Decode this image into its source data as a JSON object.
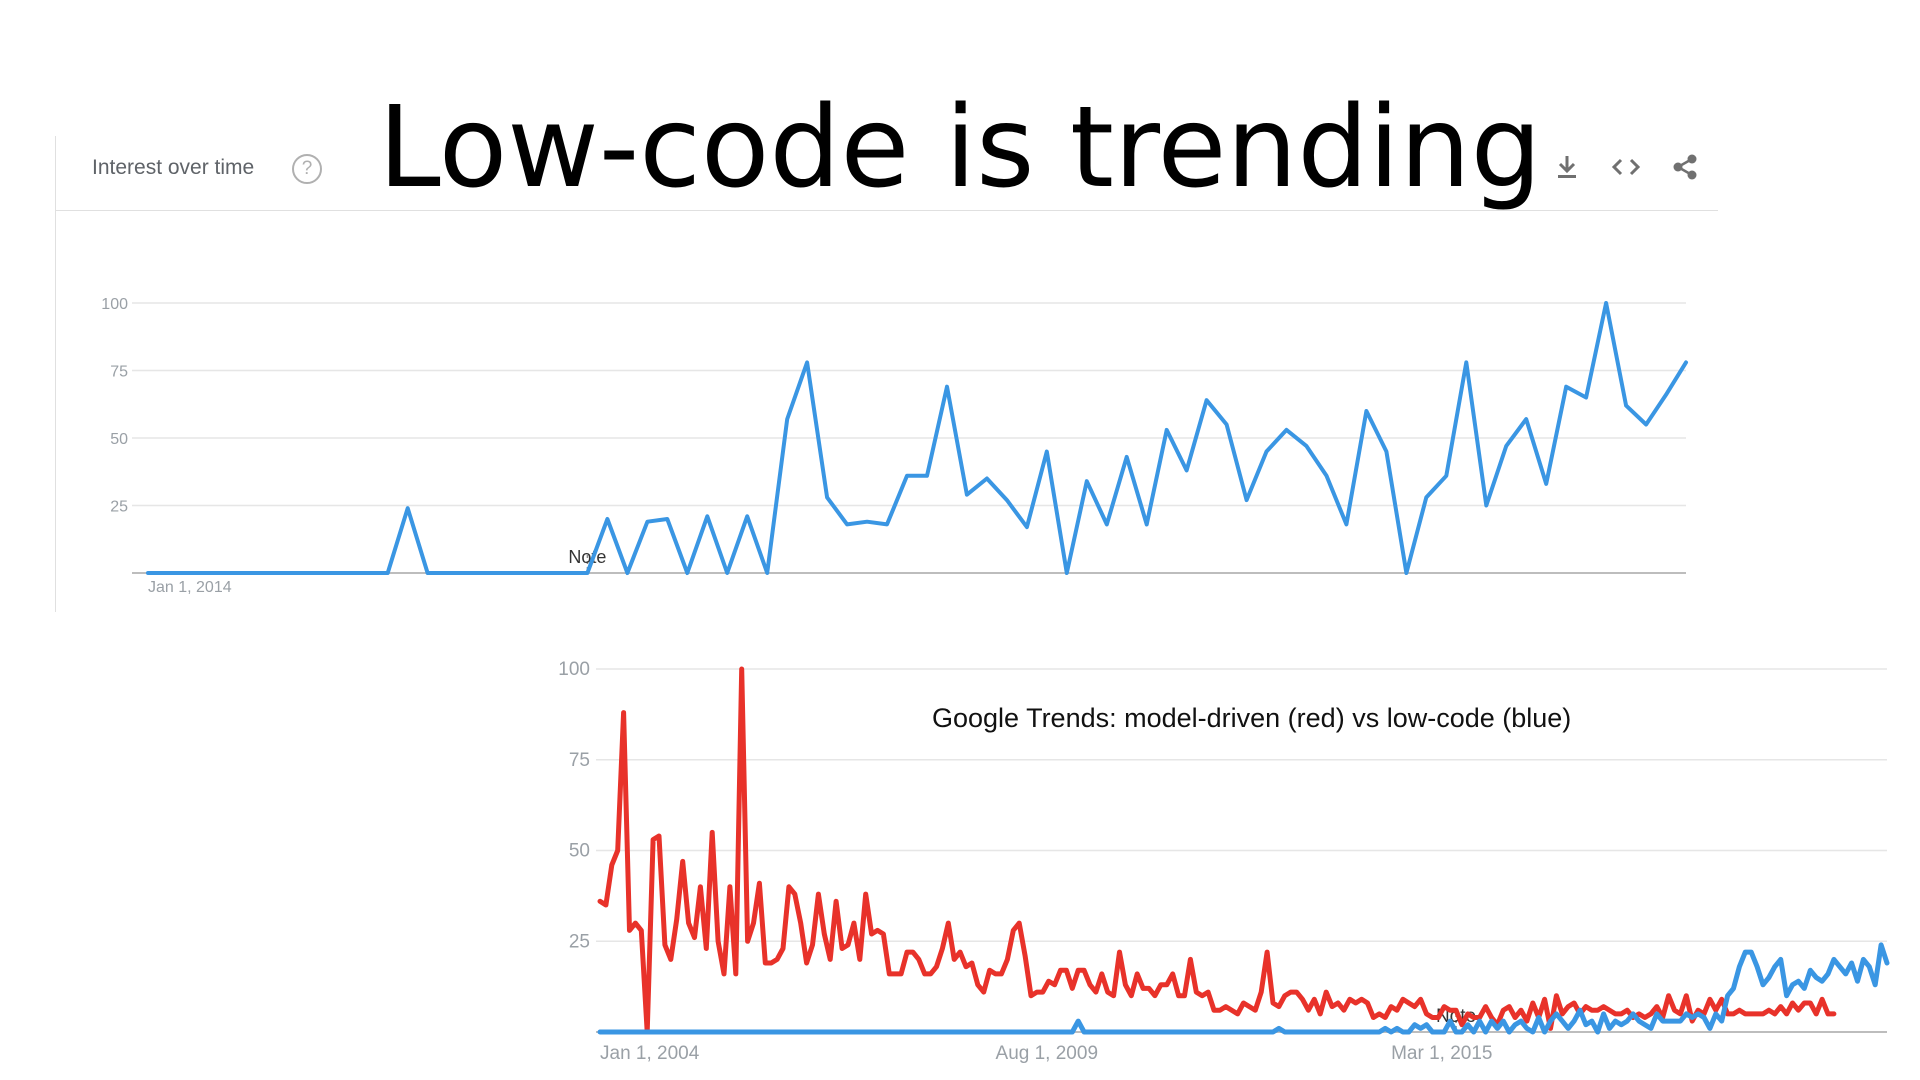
{
  "slide": {
    "title": "Low-code is trending"
  },
  "panel_top": {
    "heading": "Interest over time",
    "icons": [
      "help-icon",
      "download-icon",
      "embed-icon",
      "share-icon"
    ]
  },
  "colors": {
    "blue": "#3a96e3",
    "red": "#e8322a",
    "grid": "#e6e6e6",
    "axis": "#bdbdbd",
    "tick": "#9aa0a6"
  },
  "chart_data": [
    {
      "type": "line",
      "title": "",
      "xlabel": "",
      "ylabel": "",
      "ylim": [
        0,
        100
      ],
      "yticks": [
        25,
        50,
        75,
        100
      ],
      "x_tick_labels": [
        {
          "index": 0,
          "label": "Jan 1, 2014"
        }
      ],
      "annotation": {
        "text": "Note",
        "index": 22
      },
      "grid": true,
      "series": [
        {
          "values": [
            0,
            0,
            0,
            0,
            0,
            0,
            0,
            0,
            0,
            0,
            0,
            0,
            0,
            24,
            0,
            0,
            0,
            0,
            0,
            0,
            0,
            0,
            0,
            20,
            0,
            19,
            20,
            0,
            21,
            0,
            21,
            0,
            57,
            78,
            28,
            18,
            19,
            18,
            36,
            36,
            69,
            29,
            35,
            27,
            17,
            45,
            0,
            34,
            18,
            43,
            18,
            53,
            38,
            64,
            55,
            27,
            45,
            53,
            47,
            36,
            18,
            60,
            45,
            0,
            28,
            36,
            78,
            25,
            47,
            57,
            33,
            69,
            65,
            100,
            62,
            55,
            66,
            78
          ]
        }
      ]
    },
    {
      "type": "line",
      "title": "Google Trends: model-driven (red) vs low-code (blue)",
      "xlabel": "",
      "ylabel": "",
      "ylim": [
        0,
        100
      ],
      "yticks": [
        25,
        50,
        75,
        100
      ],
      "x_tick_labels": [
        {
          "index": 0,
          "label": "Jan 1, 2004"
        },
        {
          "index": 67,
          "label": "Aug 1, 2009"
        },
        {
          "index": 134,
          "label": "Mar 1, 2015"
        }
      ],
      "annotation": {
        "text": "Note",
        "index": 145
      },
      "grid": true,
      "series": [
        {
          "name": "model-driven",
          "color": "red",
          "values": [
            36,
            35,
            46,
            50,
            88,
            28,
            30,
            28,
            0,
            53,
            54,
            24,
            20,
            31,
            47,
            30,
            26,
            40,
            23,
            55,
            25,
            16,
            40,
            16,
            100,
            25,
            30,
            41,
            19,
            19,
            20,
            23,
            40,
            38,
            30,
            19,
            24,
            38,
            27,
            20,
            36,
            23,
            24,
            30,
            20,
            38,
            27,
            28,
            27,
            16,
            16,
            16,
            22,
            22,
            20,
            16,
            16,
            18,
            23,
            30,
            20,
            22,
            18,
            19,
            13,
            11,
            17,
            16,
            16,
            20,
            28,
            30,
            21,
            10,
            11,
            11,
            14,
            13,
            17,
            17,
            12,
            17,
            17,
            13,
            11,
            16,
            11,
            10,
            22,
            13,
            10,
            16,
            12,
            12,
            10,
            13,
            13,
            16,
            10,
            10,
            20,
            11,
            10,
            11,
            6,
            6,
            7,
            6,
            5,
            8,
            7,
            6,
            11,
            22,
            8,
            7,
            10,
            11,
            11,
            9,
            6,
            9,
            5,
            11,
            7,
            8,
            6,
            9,
            8,
            9,
            8,
            4,
            5,
            4,
            7,
            6,
            9,
            8,
            7,
            9,
            5,
            4,
            4,
            7,
            6,
            6,
            2,
            5,
            4,
            4,
            7,
            4,
            2,
            6,
            7,
            4,
            6,
            3,
            8,
            4,
            9,
            1,
            10,
            5,
            7,
            8,
            5,
            7,
            6,
            6,
            7,
            6,
            5,
            5,
            6,
            4,
            5,
            4,
            5,
            7,
            4,
            10,
            6,
            5,
            10,
            3,
            6,
            5,
            9,
            6,
            9,
            5,
            5,
            6,
            5,
            5,
            5,
            5,
            6,
            5,
            7,
            5,
            8,
            6,
            8,
            8,
            5,
            9,
            5,
            5
          ],
          "comment": "readings are approximate; red series tapers from highs near 100 in 2006 to single digits after 2015"
        },
        {
          "name": "low-code",
          "color": "blue",
          "values": [
            0,
            0,
            0,
            0,
            0,
            0,
            0,
            0,
            0,
            0,
            0,
            0,
            0,
            0,
            0,
            0,
            0,
            0,
            0,
            0,
            0,
            0,
            0,
            0,
            0,
            0,
            0,
            0,
            0,
            0,
            0,
            0,
            0,
            0,
            0,
            0,
            0,
            0,
            0,
            0,
            0,
            0,
            0,
            0,
            0,
            0,
            0,
            0,
            0,
            0,
            0,
            0,
            0,
            0,
            0,
            0,
            0,
            0,
            0,
            0,
            0,
            0,
            0,
            0,
            0,
            0,
            0,
            0,
            0,
            0,
            0,
            0,
            0,
            0,
            0,
            0,
            0,
            0,
            0,
            0,
            0,
            3,
            0,
            0,
            0,
            0,
            0,
            0,
            0,
            0,
            0,
            0,
            0,
            0,
            0,
            0,
            0,
            0,
            0,
            0,
            0,
            0,
            0,
            0,
            0,
            0,
            0,
            0,
            0,
            0,
            0,
            0,
            0,
            0,
            0,
            1,
            0,
            0,
            0,
            0,
            0,
            0,
            0,
            0,
            0,
            0,
            0,
            0,
            0,
            0,
            0,
            0,
            0,
            1,
            0,
            1,
            0,
            0,
            2,
            1,
            2,
            0,
            0,
            0,
            3,
            0,
            0,
            2,
            0,
            3,
            0,
            3,
            1,
            3,
            0,
            2,
            3,
            1,
            0,
            4,
            0,
            3,
            5,
            3,
            1,
            3,
            6,
            2,
            3,
            0,
            5,
            1,
            3,
            2,
            3,
            5,
            3,
            2,
            1,
            5,
            3,
            3,
            3,
            3,
            5,
            4,
            5,
            4,
            1,
            5,
            3,
            10,
            12,
            18,
            22,
            22,
            18,
            13,
            15,
            18,
            20,
            10,
            13,
            14,
            12,
            17,
            15,
            14,
            16,
            20,
            18,
            16,
            19,
            14,
            20,
            18,
            13,
            24,
            19
          ]
        }
      ]
    }
  ]
}
